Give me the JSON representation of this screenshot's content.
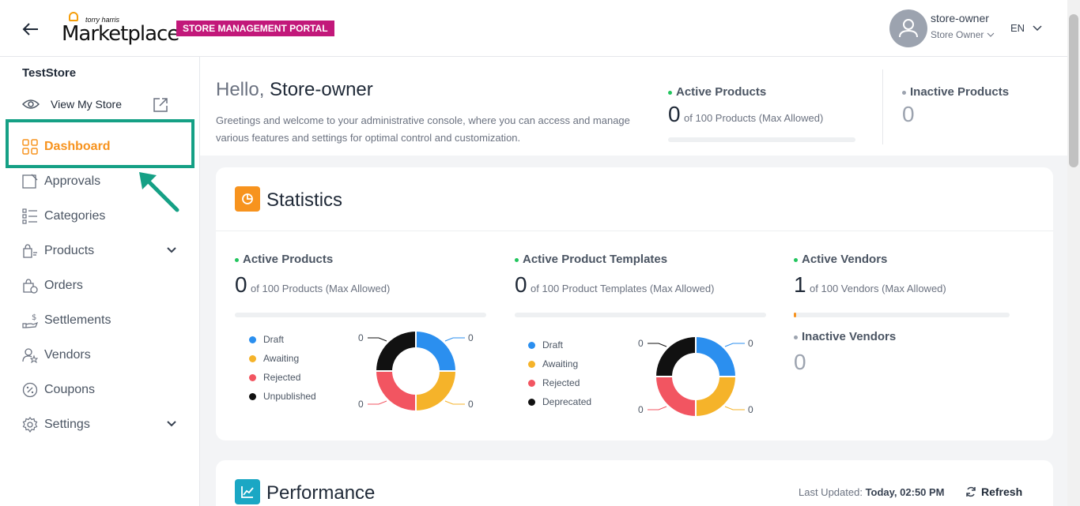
{
  "header": {
    "logo_small": "torry harris",
    "logo_big": "Marketplace",
    "portal_badge": "STORE MANAGEMENT PORTAL",
    "user_name": "store-owner",
    "user_role": "Store Owner",
    "language": "EN"
  },
  "sidebar": {
    "store_name": "TestStore",
    "view_store": "View My Store",
    "items": [
      {
        "label": "Dashboard",
        "icon": "grid-icon",
        "active": true
      },
      {
        "label": "Approvals",
        "icon": "approvals-icon"
      },
      {
        "label": "Categories",
        "icon": "categories-icon"
      },
      {
        "label": "Products",
        "icon": "products-icon",
        "expandable": true
      },
      {
        "label": "Orders",
        "icon": "orders-icon"
      },
      {
        "label": "Settlements",
        "icon": "settlements-icon"
      },
      {
        "label": "Vendors",
        "icon": "vendors-icon"
      },
      {
        "label": "Coupons",
        "icon": "coupons-icon"
      },
      {
        "label": "Settings",
        "icon": "gear-icon",
        "expandable": true
      }
    ]
  },
  "welcome": {
    "hello_prefix": "Hello,",
    "hello_name": "Store-owner",
    "greeting": "Greetings and welcome to your administrative console, where you can access and manage various features and settings for optimal control and customization.",
    "active_products": {
      "title": "Active Products",
      "value": "0",
      "sub": "of 100 Products (Max Allowed)"
    },
    "inactive_products": {
      "title": "Inactive Products",
      "value": "0"
    }
  },
  "statistics": {
    "title": "Statistics",
    "active_products": {
      "title": "Active Products",
      "value": "0",
      "sub": "of 100 Products (Max Allowed)",
      "legend": [
        "Draft",
        "Awaiting",
        "Rejected",
        "Unpublished"
      ],
      "labels": {
        "top_left": "0",
        "top_right": "0",
        "bottom_left": "0",
        "bottom_right": "0"
      }
    },
    "active_templates": {
      "title": "Active Product Templates",
      "value": "0",
      "sub": "of 100 Product Templates (Max Allowed)",
      "legend": [
        "Draft",
        "Awaiting",
        "Rejected",
        "Deprecated"
      ],
      "labels": {
        "top_left": "0",
        "top_right": "0",
        "bottom_left": "0",
        "bottom_right": "0"
      }
    },
    "active_vendors": {
      "title": "Active Vendors",
      "value": "1",
      "sub": "of 100 Vendors (Max Allowed)",
      "progress_fraction": 0.01
    },
    "inactive_vendors": {
      "title": "Inactive Vendors",
      "value": "0"
    },
    "colors": {
      "draft": "#2b8fef",
      "awaiting": "#f5b32a",
      "rejected": "#f25561",
      "unpublished": "#111111"
    }
  },
  "performance": {
    "title": "Performance",
    "last_updated_label": "Last Updated:",
    "last_updated_value": "Today, 02:50 PM",
    "refresh": "Refresh"
  }
}
